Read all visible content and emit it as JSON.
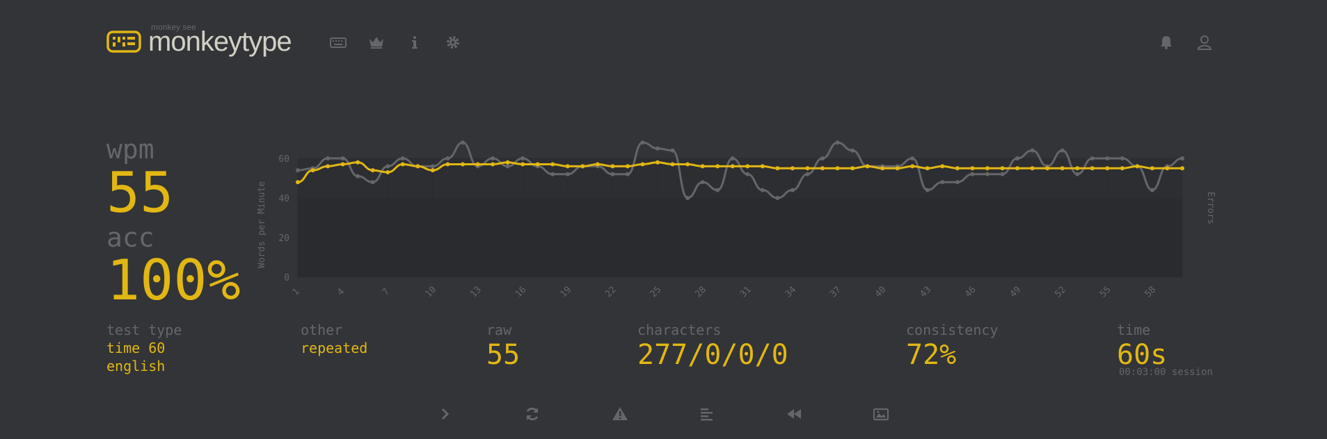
{
  "header": {
    "logo_sub": "monkey see",
    "logo_text": "monkeytype",
    "nav_icons": [
      "keyboard-icon",
      "crown-icon",
      "info-icon",
      "gear-icon"
    ],
    "right_icons": [
      "bell-icon",
      "user-icon"
    ]
  },
  "result": {
    "wpm_label": "wpm",
    "wpm_value": "55",
    "acc_label": "acc",
    "acc_value": "100%"
  },
  "stats": {
    "test_type_label": "test type",
    "test_type_line1": "time 60",
    "test_type_line2": "english",
    "other_label": "other",
    "other_value": "repeated",
    "raw_label": "raw",
    "raw_value": "55",
    "characters_label": "characters",
    "characters_value": "277/0/0/0",
    "consistency_label": "consistency",
    "consistency_value": "72%",
    "time_label": "time",
    "time_value": "60s",
    "session_text": "00:03:00 session"
  },
  "bottom_buttons": [
    "next-test-icon",
    "restart-icon",
    "warning-icon",
    "words-history-icon",
    "replay-icon",
    "screenshot-icon"
  ],
  "colors": {
    "background": "#323437",
    "accent": "#e2b714",
    "sub": "#646669",
    "text": "#d1d0c5"
  },
  "chart_data": {
    "type": "line",
    "ylabel": "Words per Minute",
    "y2label": "Errors",
    "ylim": [
      0,
      60
    ],
    "yticks": [
      0,
      20,
      40,
      60
    ],
    "xticks": [
      1,
      4,
      7,
      10,
      13,
      16,
      19,
      22,
      25,
      28,
      31,
      34,
      37,
      40,
      43,
      46,
      49,
      52,
      55,
      58
    ],
    "x": [
      1,
      2,
      3,
      4,
      5,
      6,
      7,
      8,
      9,
      10,
      11,
      12,
      13,
      14,
      15,
      16,
      17,
      18,
      19,
      20,
      21,
      22,
      23,
      24,
      25,
      26,
      27,
      28,
      29,
      30,
      31,
      32,
      33,
      34,
      35,
      36,
      37,
      38,
      39,
      40,
      41,
      42,
      43,
      44,
      45,
      46,
      47,
      48,
      49,
      50,
      51,
      52,
      53,
      54,
      55,
      56,
      57,
      58,
      59,
      60
    ],
    "series": [
      {
        "name": "",
        "color": "#646669",
        "values": [
          54,
          55,
          60,
          60,
          51,
          48,
          56,
          60,
          56,
          56,
          60,
          68,
          56,
          60,
          56,
          60,
          56,
          52,
          52,
          56,
          56,
          52,
          52,
          68,
          65,
          64,
          40,
          48,
          44,
          60,
          52,
          44,
          40,
          44,
          52,
          60,
          68,
          64,
          56,
          56,
          56,
          60,
          44,
          48,
          48,
          52,
          52,
          52,
          60,
          64,
          56,
          64,
          52,
          60,
          60,
          60,
          56,
          44,
          56,
          60
        ]
      },
      {
        "name": "",
        "color": "#e2b714",
        "values": [
          48,
          54,
          56,
          57,
          58,
          54,
          53,
          57,
          56,
          54,
          57,
          57,
          57,
          57,
          58,
          57,
          57,
          57,
          56,
          56,
          57,
          56,
          56,
          57,
          58,
          57,
          57,
          56,
          56,
          56,
          56,
          56,
          55,
          55,
          55,
          55,
          55,
          55,
          56,
          55,
          55,
          56,
          55,
          56,
          55,
          55,
          55,
          55,
          55,
          55,
          55,
          55,
          55,
          55,
          55,
          55,
          56,
          55,
          55,
          55
        ]
      }
    ]
  }
}
